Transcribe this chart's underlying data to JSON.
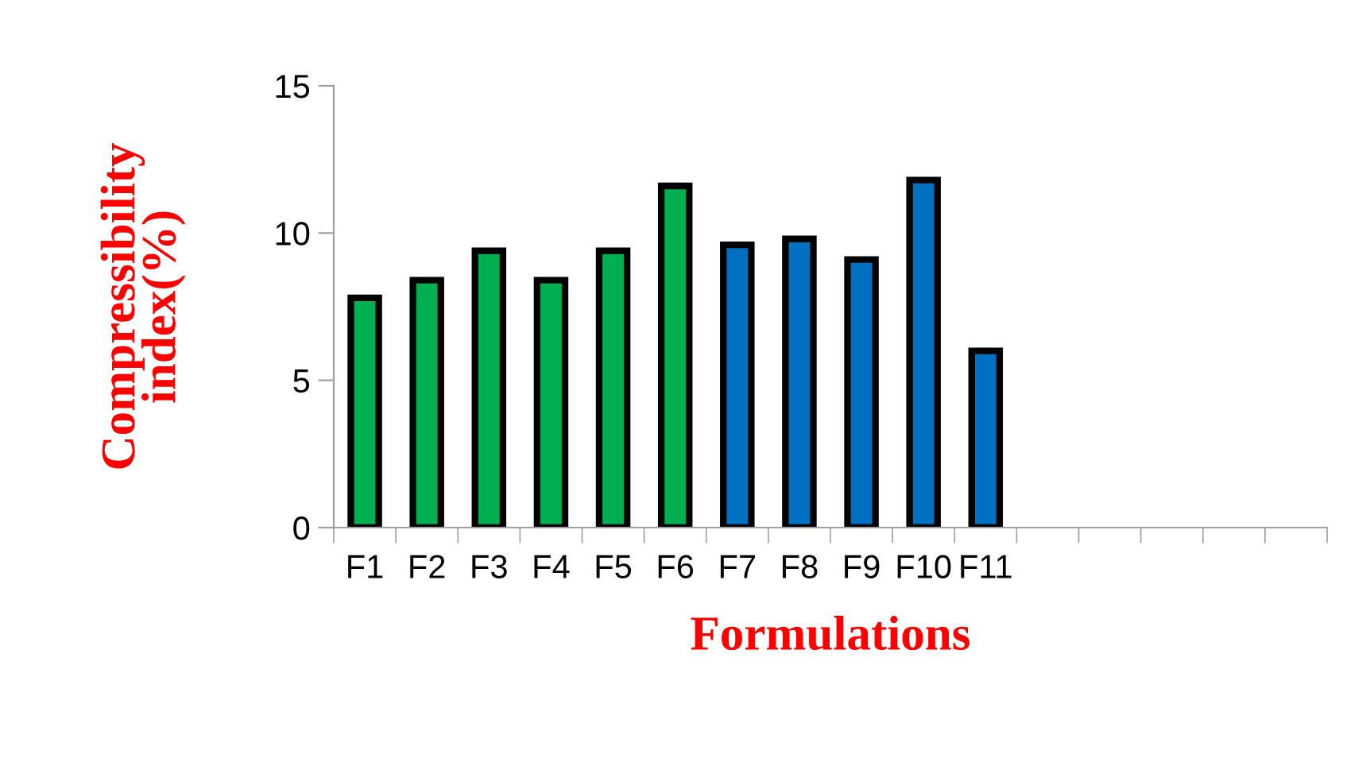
{
  "chart_data": {
    "type": "bar",
    "xlabel": "Formulations",
    "ylabel": "Compressibility index(%)",
    "categories": [
      "F1",
      "F2",
      "F3",
      "F4",
      "F5",
      "F6",
      "F7",
      "F8",
      "F9",
      "F10",
      "F11",
      null,
      null,
      null,
      null,
      null
    ],
    "values": [
      7.8,
      8.4,
      9.4,
      8.4,
      9.4,
      11.6,
      9.6,
      9.8,
      9.1,
      11.8,
      6.0,
      null,
      null,
      null,
      null,
      null
    ],
    "colors": [
      "#00b050",
      "#00b050",
      "#00b050",
      "#00b050",
      "#00b050",
      "#00b050",
      "#0070c0",
      "#0070c0",
      "#0070c0",
      "#0070c0",
      "#0070c0",
      null,
      null,
      null,
      null,
      null
    ],
    "ylim": [
      0,
      15
    ],
    "yticks": [
      0,
      5,
      10,
      15
    ],
    "grid": false,
    "legend": false
  }
}
